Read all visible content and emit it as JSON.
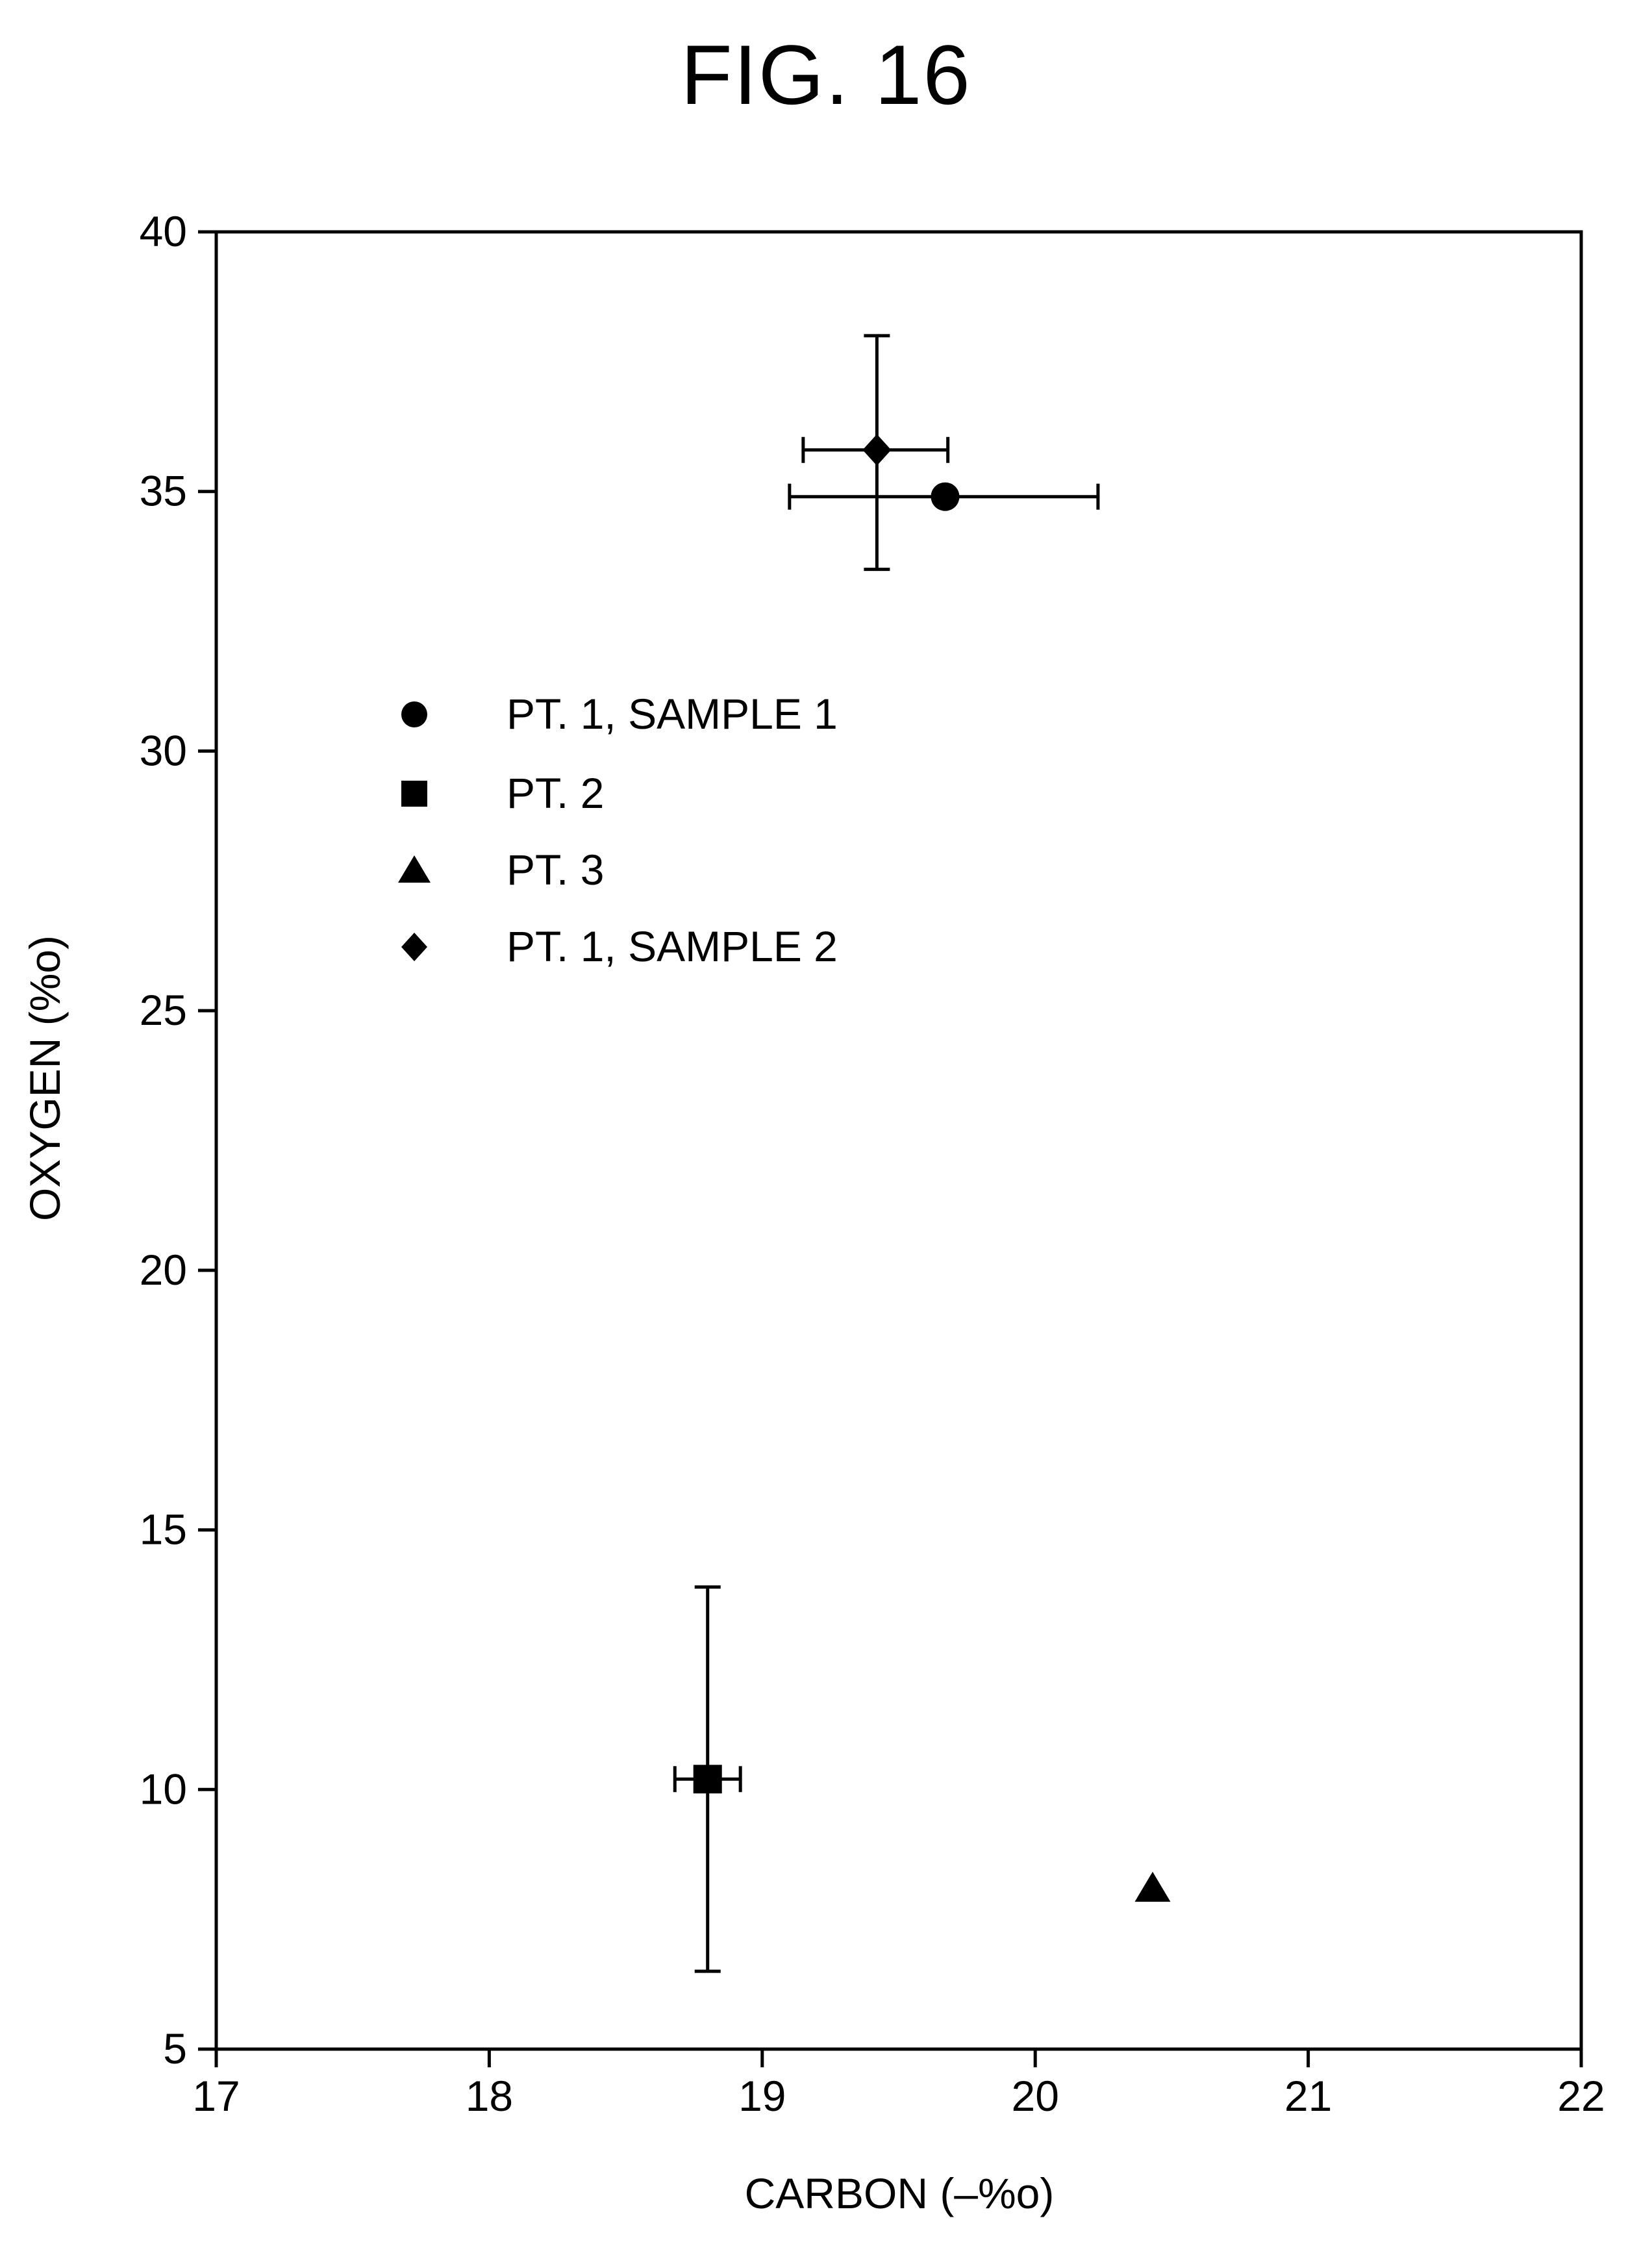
{
  "figure_label": "FIG. 16",
  "chart_data": {
    "type": "scatter",
    "xlabel": "CARBON (–%o)",
    "ylabel": "OXYGEN (%o)",
    "xlim": [
      17,
      22
    ],
    "ylim": [
      5,
      40
    ],
    "xticks": [
      17,
      18,
      19,
      20,
      21,
      22
    ],
    "yticks": [
      5,
      10,
      15,
      20,
      25,
      30,
      35,
      40
    ],
    "grid": false,
    "legend_position": "upper-left",
    "series": [
      {
        "name": "PT. 1, SAMPLE 1",
        "marker": "circle",
        "x": 19.67,
        "y": 34.9,
        "x_err": [
          19.1,
          20.23
        ]
      },
      {
        "name": "PT. 2",
        "marker": "square",
        "x": 18.8,
        "y": 10.2,
        "x_err": [
          18.68,
          18.92
        ],
        "y_err": [
          6.5,
          13.9
        ]
      },
      {
        "name": "PT. 3",
        "marker": "triangle",
        "x": 20.43,
        "y": 8.1
      },
      {
        "name": "PT. 1, SAMPLE 2",
        "marker": "diamond",
        "x": 19.42,
        "y": 35.8,
        "x_err": [
          19.15,
          19.68
        ],
        "y_err": [
          33.5,
          38.0
        ]
      }
    ]
  }
}
